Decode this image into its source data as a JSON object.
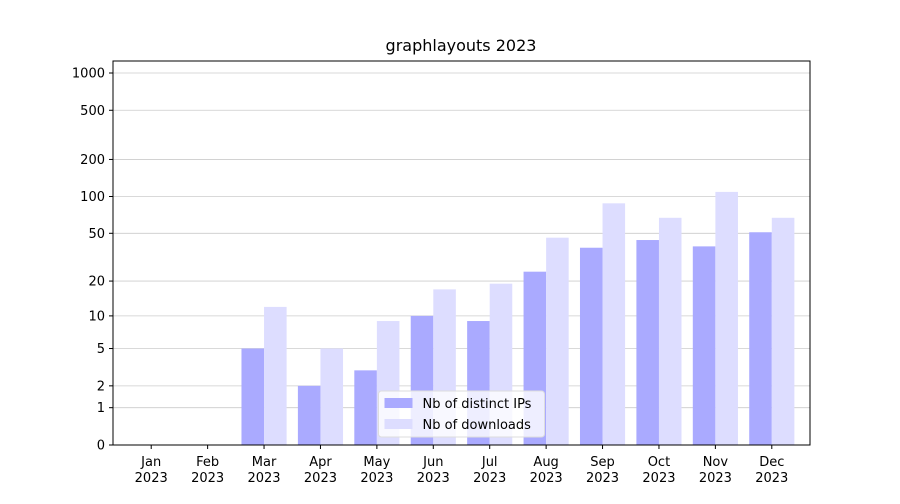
{
  "chart_data": {
    "type": "bar",
    "title": "graphlayouts 2023",
    "categories": [
      [
        "Jan",
        "2023"
      ],
      [
        "Feb",
        "2023"
      ],
      [
        "Mar",
        "2023"
      ],
      [
        "Apr",
        "2023"
      ],
      [
        "May",
        "2023"
      ],
      [
        "Jun",
        "2023"
      ],
      [
        "Jul",
        "2023"
      ],
      [
        "Aug",
        "2023"
      ],
      [
        "Sep",
        "2023"
      ],
      [
        "Oct",
        "2023"
      ],
      [
        "Nov",
        "2023"
      ],
      [
        "Dec",
        "2023"
      ]
    ],
    "series": [
      {
        "name": "Nb of distinct IPs",
        "color": "#aaaaff",
        "values": [
          0,
          0,
          5,
          2,
          3,
          10,
          9,
          24,
          38,
          44,
          39,
          51
        ]
      },
      {
        "name": "Nb of downloads",
        "color": "#ddddff",
        "values": [
          0,
          0,
          12,
          5,
          9,
          17,
          19,
          46,
          88,
          67,
          109,
          67
        ]
      }
    ],
    "scale": "log1p",
    "ylim": [
      0,
      1250
    ],
    "yticks": [
      0,
      1,
      2,
      5,
      10,
      20,
      50,
      100,
      200,
      500,
      1000
    ],
    "grid": true,
    "legend": "lower center"
  }
}
